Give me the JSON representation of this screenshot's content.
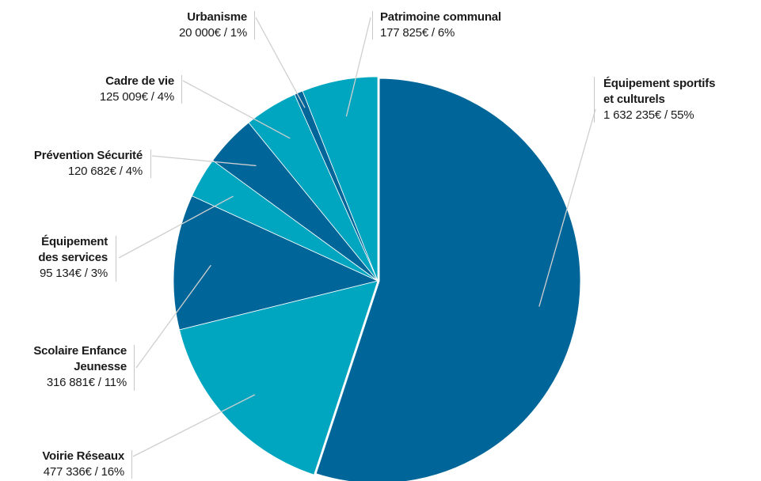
{
  "chart_data": {
    "type": "pie",
    "currency": "€",
    "slices": [
      {
        "name": "Équipement sportifs et culturels",
        "name_l1": "Équipement sportifs",
        "name_l2": "et culturels",
        "amount": "1 632 235€",
        "percent": "55%",
        "value": 1632235,
        "color": "#006699"
      },
      {
        "name": "Voirie Réseaux",
        "amount": "477 336€",
        "percent": "16%",
        "value": 477336,
        "color": "#00A6BF"
      },
      {
        "name": "Scolaire Enfance Jeunesse",
        "name_l1": "Scolaire Enfance",
        "name_l2": "Jeunesse",
        "amount": "316 881€",
        "percent": "11%",
        "value": 316881,
        "color": "#006699"
      },
      {
        "name": "Équipement des services",
        "name_l1": "Équipement",
        "name_l2": "des services",
        "amount": "95 134€",
        "percent": "3%",
        "value": 95134,
        "color": "#00A6BF"
      },
      {
        "name": "Prévention Sécurité",
        "amount": "120 682€",
        "percent": "4%",
        "value": 120682,
        "color": "#006699"
      },
      {
        "name": "Cadre de vie",
        "amount": "125 009€",
        "percent": "4%",
        "value": 125009,
        "color": "#00A6BF"
      },
      {
        "name": "Urbanisme",
        "amount": "20 000€",
        "percent": "1%",
        "value": 20000,
        "color": "#006699"
      },
      {
        "name": "Patrimoine communal",
        "amount": "177 825€",
        "percent": "6%",
        "value": 177825,
        "color": "#00A6BF"
      }
    ]
  }
}
